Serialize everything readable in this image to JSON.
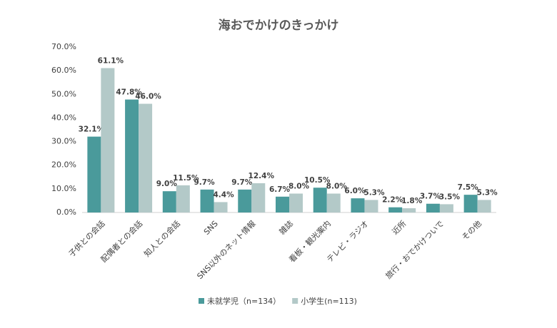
{
  "chart_data": {
    "type": "bar",
    "title": "海おでかけのきっかけ",
    "categories": [
      "子供との会話",
      "配偶者との会話",
      "知人との会話",
      "SNS",
      "SNS以外のネット情報",
      "雑誌",
      "看板・観光案内",
      "テレビ・ラジオ",
      "近所",
      "旅行・おでかけついで",
      "その他"
    ],
    "series": [
      {
        "name": "未就学児（n=134）",
        "color": "#4a9a9b",
        "values": [
          32.1,
          47.8,
          9.0,
          9.7,
          9.7,
          6.7,
          10.5,
          6.0,
          2.2,
          3.7,
          7.5
        ],
        "value_labels": [
          "32.1%",
          "47.8%",
          "9.0%",
          "9.7%",
          "9.7%",
          "6.7%",
          "10.5%",
          "6.0%",
          "2.2%",
          "3.7%",
          "7.5%"
        ]
      },
      {
        "name": "小学生(n=113)",
        "color": "#b3c9c8",
        "values": [
          61.1,
          46.0,
          11.5,
          4.4,
          12.4,
          8.0,
          8.0,
          5.3,
          1.8,
          3.5,
          5.3
        ],
        "value_labels": [
          "61.1%",
          "46.0%",
          "11.5%",
          "4.4%",
          "12.4%",
          "8.0%",
          "8.0%",
          "5.3%",
          "1.8%",
          "3.5%",
          "5.3%"
        ]
      }
    ],
    "ylim": [
      0,
      70
    ],
    "yticks": [
      {
        "value": 0,
        "label": "0.0%"
      },
      {
        "value": 10,
        "label": "10.0%"
      },
      {
        "value": 20,
        "label": "20.0%"
      },
      {
        "value": 30,
        "label": "30.0%"
      },
      {
        "value": 40,
        "label": "40.0%"
      },
      {
        "value": 50,
        "label": "50.0%"
      },
      {
        "value": 60,
        "label": "60.0%"
      },
      {
        "value": 70,
        "label": "70.0%"
      }
    ],
    "grid": false,
    "legend": "bottom"
  }
}
